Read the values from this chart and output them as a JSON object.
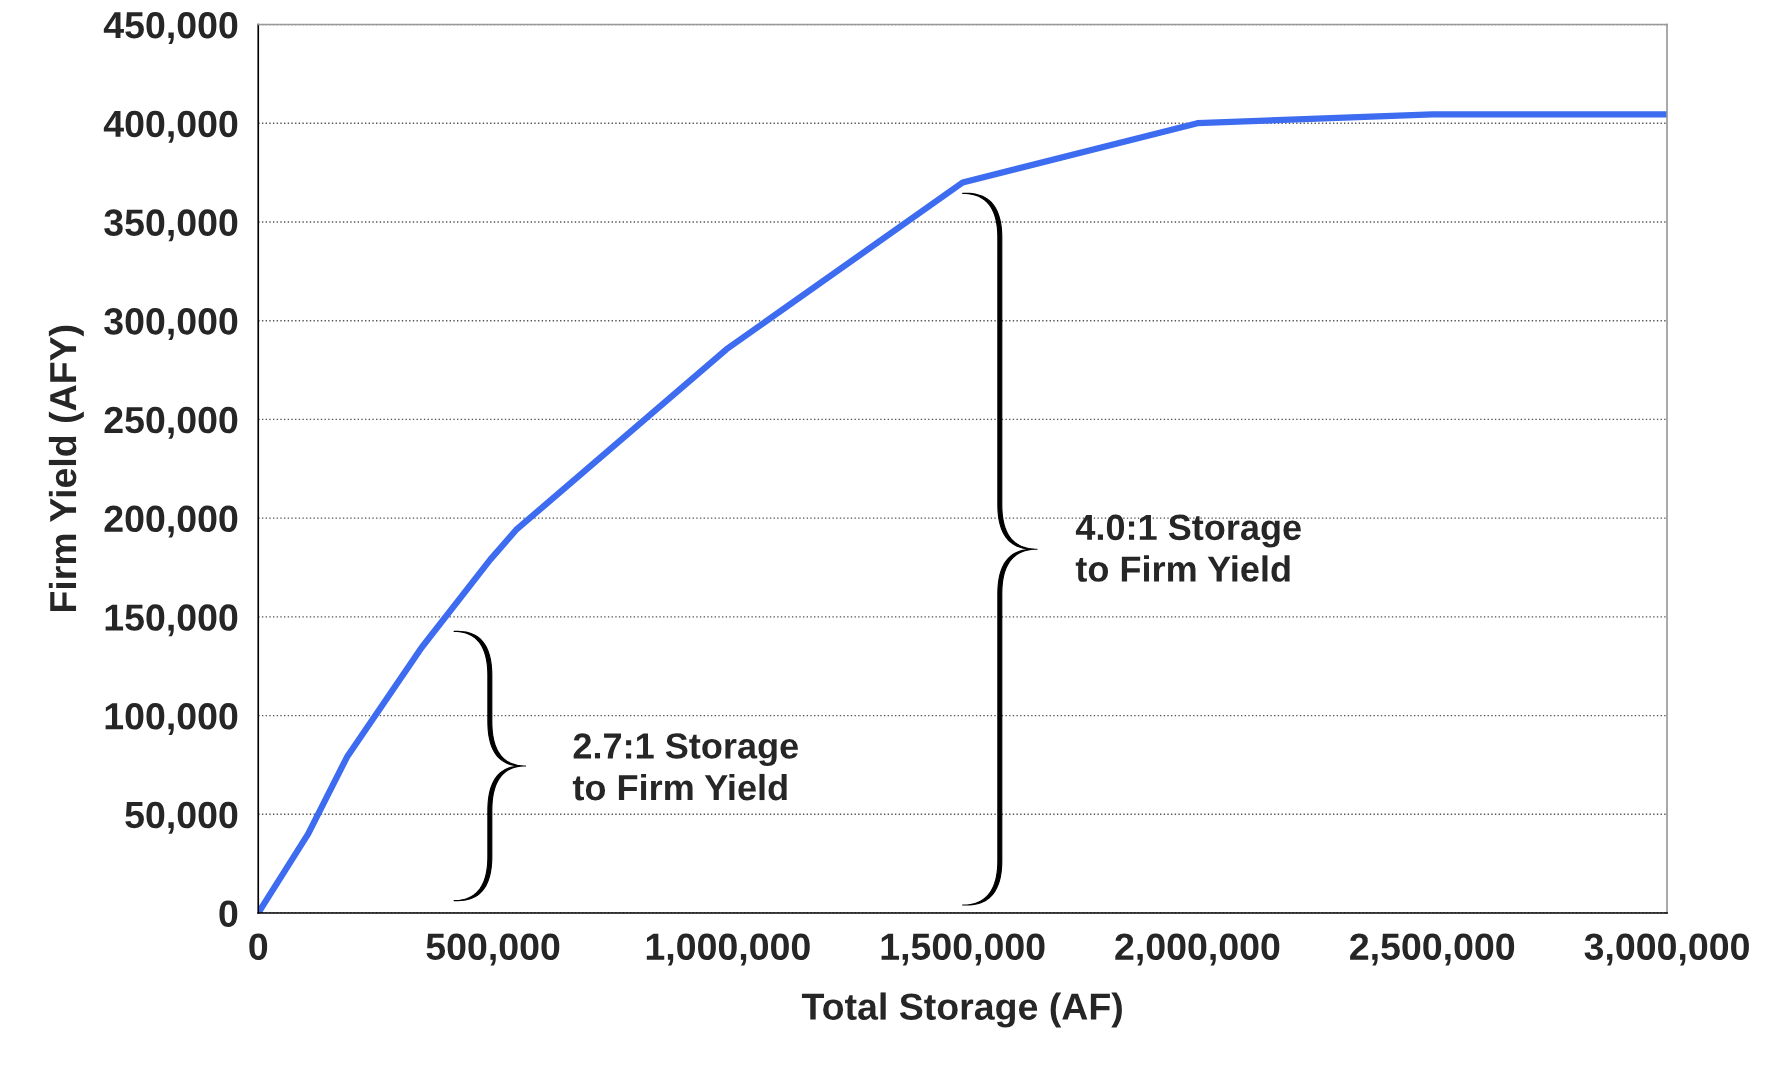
{
  "chart_data": {
    "type": "line",
    "xlabel": "Total Storage (AF)",
    "ylabel": "Firm Yield (AFY)",
    "x": [
      0,
      106000,
      189000,
      348000,
      494000,
      549000,
      593000,
      997000,
      1500000,
      2000000,
      2500000,
      3000000
    ],
    "series": [
      {
        "color": "#3d6cf0",
        "values": [
          0,
          40000,
          79000,
          134500,
          179000,
          194000,
          203000,
          285500,
          370000,
          400000,
          404500,
          404500
        ]
      }
    ],
    "xlim": [
      0,
      3000000
    ],
    "ylim": [
      0,
      450000
    ],
    "xticks": [
      0,
      {
        "value": 500000,
        "label": "500,000"
      },
      {
        "value": 1000000,
        "label": "1,000,000"
      },
      {
        "value": 1500000,
        "label": "1,500,000"
      },
      {
        "value": 2000000,
        "label": "2,000,000"
      },
      {
        "value": 2500000,
        "label": "2,500,000"
      },
      {
        "value": 3000000,
        "label": "3,000,000"
      }
    ],
    "yticks": [
      0,
      {
        "value": 50000,
        "label": "50,000"
      },
      {
        "value": 100000,
        "label": "100,000"
      },
      {
        "value": 150000,
        "label": "150,000"
      },
      {
        "value": 200000,
        "label": "200,000"
      },
      {
        "value": 250000,
        "label": "250,000"
      },
      {
        "value": 300000,
        "label": "300,000"
      },
      {
        "value": 350000,
        "label": "350,000"
      },
      {
        "value": 400000,
        "label": "400,000"
      },
      {
        "value": 450000,
        "label": "450,000"
      }
    ],
    "grid": "y",
    "marker": "none",
    "line_style": "solid",
    "annotations": [
      "2.7:1 Storage\nto Firm Yield",
      "4.0:1 Storage\nto Firm Yield"
    ]
  }
}
